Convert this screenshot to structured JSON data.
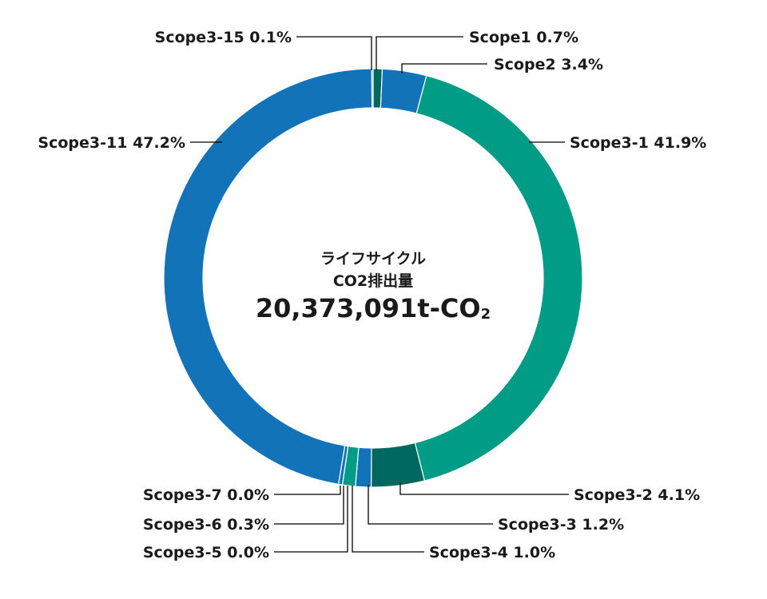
{
  "chart_data": {
    "type": "pie",
    "center_line1": "ライフサイクル",
    "center_line2": "CO2排出量",
    "center_value_main": "20,373,091t-CO",
    "center_value_sub": "2",
    "slices": [
      {
        "name": "Scope1",
        "label": "Scope1  0.7%",
        "value": 0.7,
        "color": "#00685e"
      },
      {
        "name": "Scope2",
        "label": "Scope2  3.4%",
        "value": 3.4,
        "color": "#1273b9"
      },
      {
        "name": "Scope3-1",
        "label": "Scope3-1  41.9%",
        "value": 41.9,
        "color": "#009c86"
      },
      {
        "name": "Scope3-2",
        "label": "Scope3-2  4.1%",
        "value": 4.1,
        "color": "#00685e"
      },
      {
        "name": "Scope3-3",
        "label": "Scope3-3  1.2%",
        "value": 1.2,
        "color": "#1273b9"
      },
      {
        "name": "Scope3-4",
        "label": "Scope3-4  1.0%",
        "value": 1.0,
        "color": "#009c86"
      },
      {
        "name": "Scope3-5",
        "label": "Scope3-5  0.0%",
        "value": 0.0,
        "color": "#00685e"
      },
      {
        "name": "Scope3-6",
        "label": "Scope3-6  0.3%",
        "value": 0.3,
        "color": "#1273b9"
      },
      {
        "name": "Scope3-7",
        "label": "Scope3-7  0.0%",
        "value": 0.0,
        "color": "#009c86"
      },
      {
        "name": "Scope3-11",
        "label": "Scope3-11  47.2%",
        "value": 47.2,
        "color": "#1273b9"
      },
      {
        "name": "Scope3-15",
        "label": "Scope3-15  0.1%",
        "value": 0.1,
        "color": "#009c86"
      }
    ]
  }
}
